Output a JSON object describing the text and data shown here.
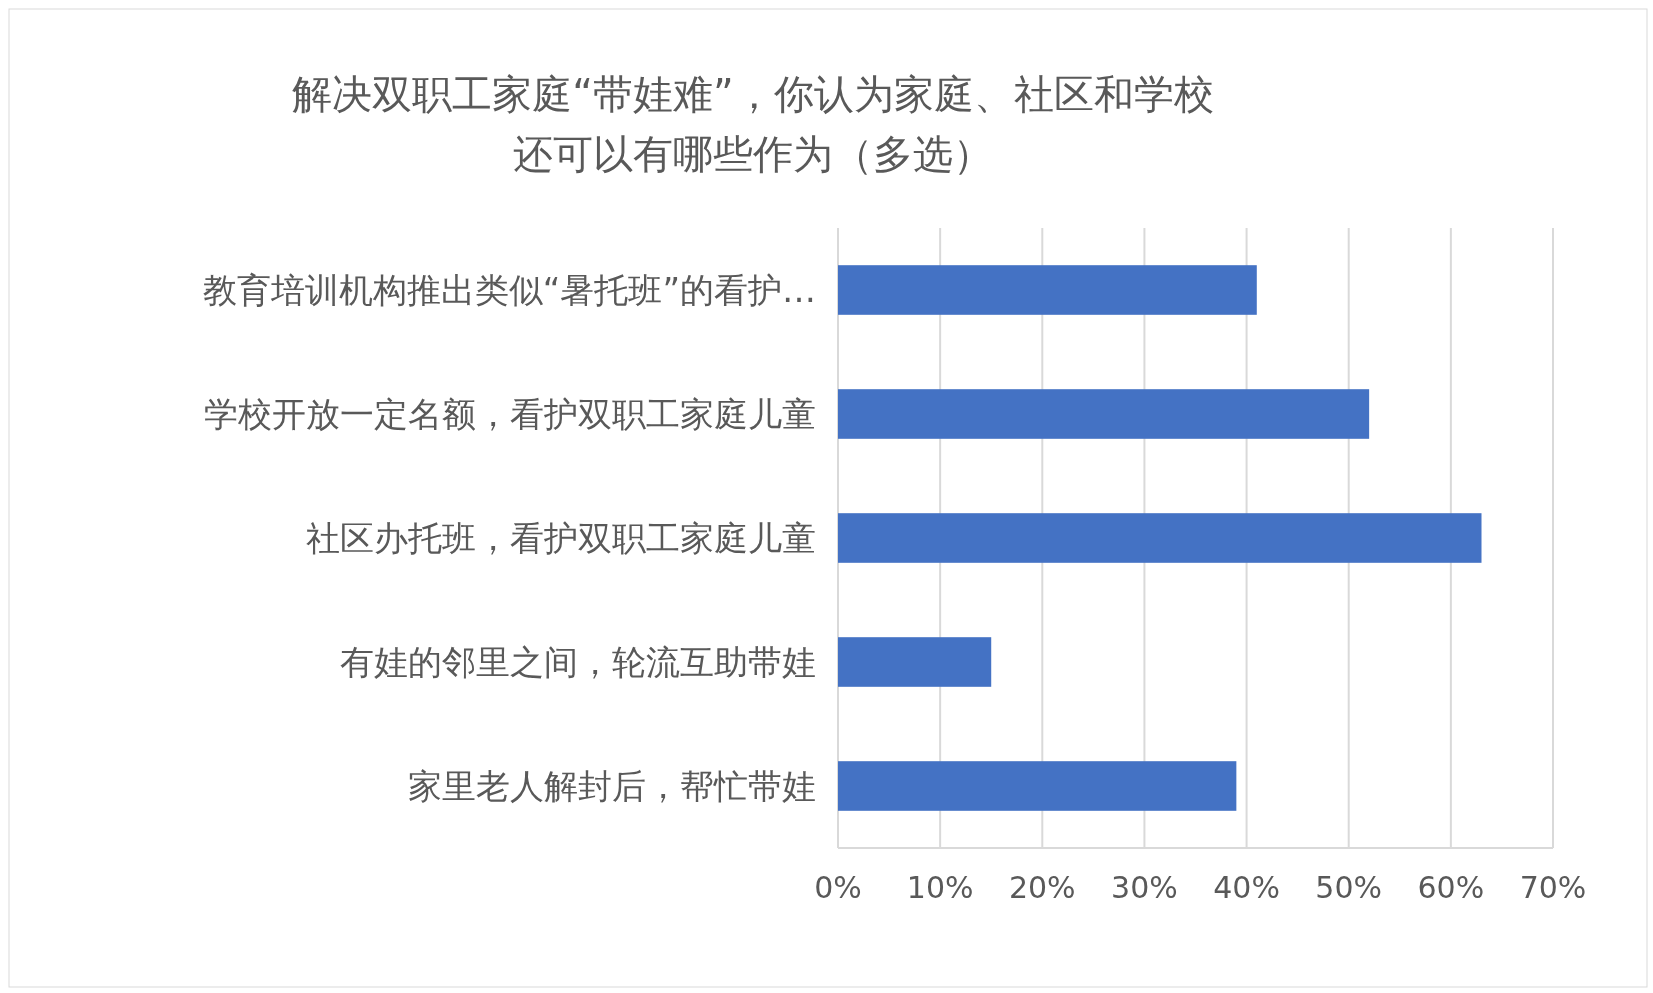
{
  "chart_data": {
    "type": "bar",
    "orientation": "horizontal",
    "title": "解决双职工家庭“带娃难”，你认为家庭、社区和学校还可以有哪些作为（多选）",
    "categories": [
      "教育培训机构推出类似“暑托班”的看护…",
      "学校开放一定名额，看护双职工家庭儿童",
      "社区办托班，看护双职工家庭儿童",
      "有娃的邻里之间，轮流互助带娃",
      "家里老人解封后，帮忙带娃"
    ],
    "values": [
      41,
      52,
      63,
      15,
      39
    ],
    "color": "#4472c4",
    "xlim": [
      0,
      70
    ],
    "xticks": [
      {
        "value": 0,
        "label": "0%"
      },
      {
        "value": 10,
        "label": "10%"
      },
      {
        "value": 20,
        "label": "20%"
      },
      {
        "value": 30,
        "label": "30%"
      },
      {
        "value": 40,
        "label": "40%"
      },
      {
        "value": 50,
        "label": "50%"
      },
      {
        "value": 60,
        "label": "60%"
      },
      {
        "value": 70,
        "label": "70%"
      }
    ],
    "grid": "x"
  }
}
